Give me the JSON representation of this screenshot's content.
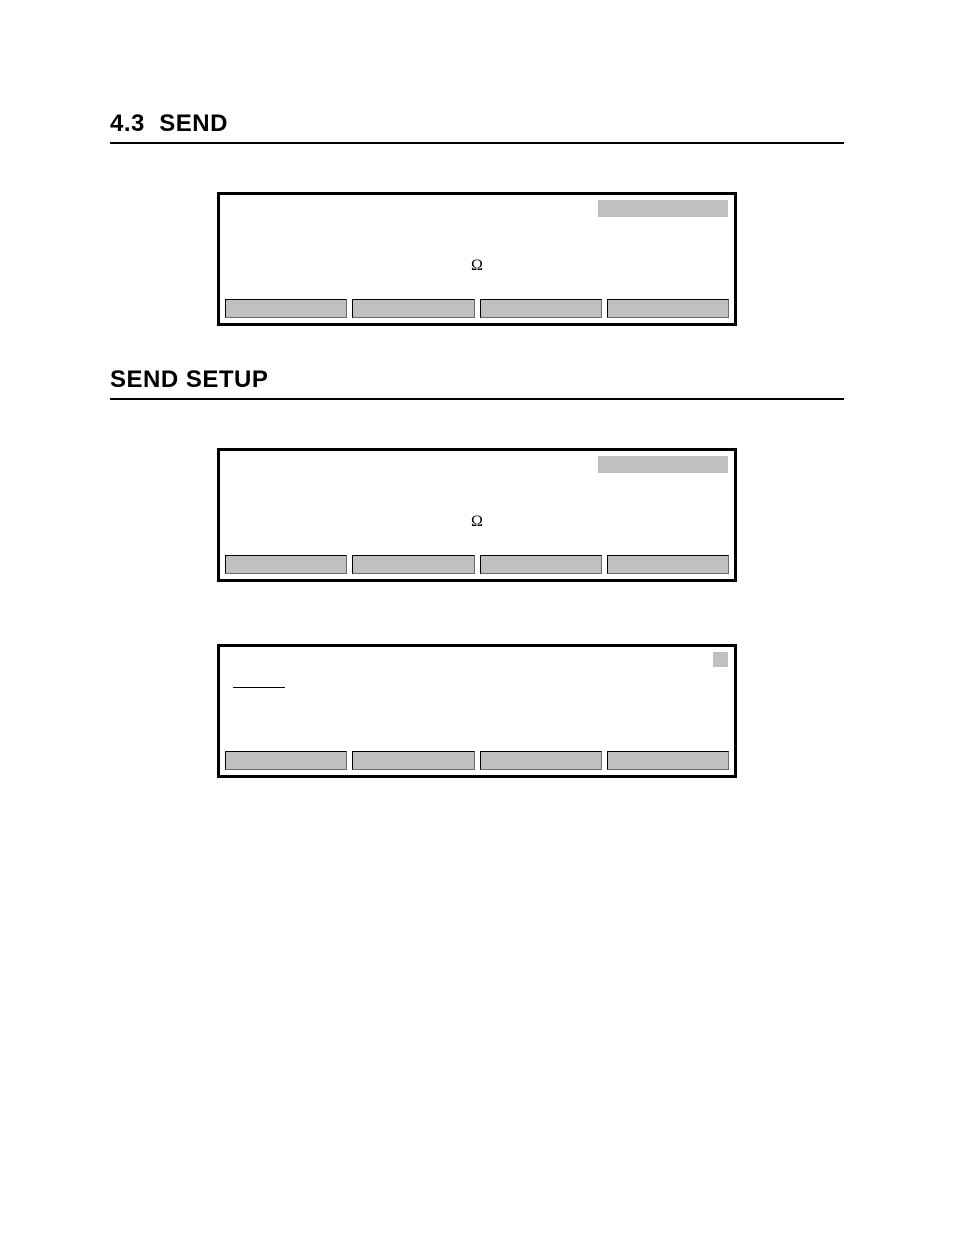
{
  "page": {
    "section_number": "4.3",
    "section_title": "SEND",
    "subsection_title": "SEND SETUP"
  },
  "panels": [
    {
      "id": "panel1",
      "tag_style": "wide",
      "omega_symbol": "Ω",
      "show_underline": false,
      "border_color": "#000000",
      "button_bg": "#c0c0c0",
      "tag_bg": "#c0c0c0"
    },
    {
      "id": "panel2",
      "tag_style": "wide",
      "omega_symbol": "Ω",
      "show_underline": false,
      "border_color": "#000000",
      "button_bg": "#c0c0c0",
      "tag_bg": "#c0c0c0"
    },
    {
      "id": "panel3",
      "tag_style": "small",
      "omega_symbol": "",
      "show_underline": true,
      "border_color": "#000000",
      "button_bg": "#c0c0c0",
      "tag_bg": "#c0c0c0"
    }
  ],
  "styling": {
    "page_bg": "#ffffff",
    "heading_fontsize": 24,
    "heading_border_color": "#000000",
    "panel_border_width": 3,
    "button_height": 19,
    "omega_fontsize": 16
  }
}
